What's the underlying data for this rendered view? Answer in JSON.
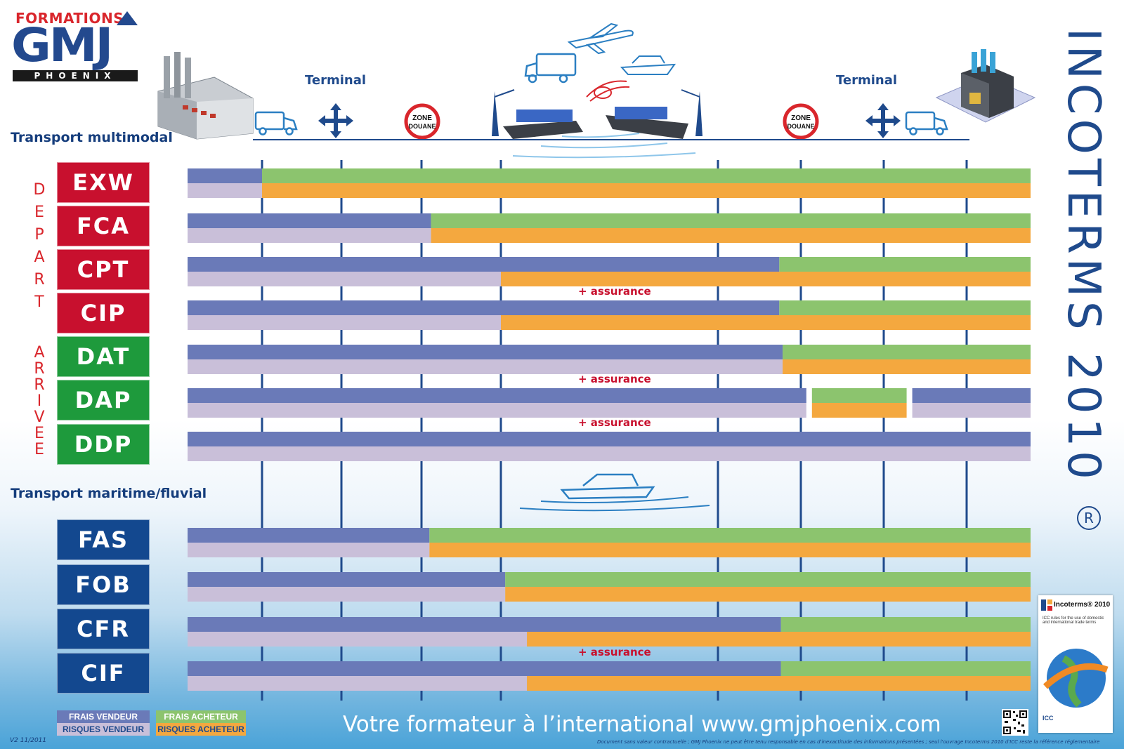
{
  "brand": {
    "formations": "FORMATIONS",
    "gmj": "GMJ",
    "phoenix": "PHOENIX"
  },
  "labels": {
    "multimodal": "Transport multimodal",
    "maritime": "Transport maritime/fluvial",
    "terminal_left": "Terminal",
    "terminal_right": "Terminal",
    "zone": "ZONE",
    "douane": "DOUANE",
    "vertical_title": "INCOTERMS 2010",
    "registered": "®",
    "depart": "DEPART",
    "arrivee": "ARRIVEE"
  },
  "terms": [
    {
      "code": "EXW",
      "group": "depart",
      "seller_cost_end": 1,
      "seller_risk_end": 1
    },
    {
      "code": "FCA",
      "group": "depart",
      "seller_cost_end": 3.12,
      "seller_risk_end": 3.12
    },
    {
      "code": "CPT",
      "group": "depart",
      "seller_cost_end": 5.74,
      "seller_risk_end": 4.0
    },
    {
      "code": "CIP",
      "group": "depart",
      "seller_cost_end": 5.74,
      "seller_risk_end": 4.0,
      "note": "+ assurance"
    },
    {
      "code": "DAT",
      "group": "arrivee",
      "seller_cost_end": 5.78,
      "seller_risk_end": 5.78
    },
    {
      "code": "DAP",
      "group": "arrivee",
      "seller_cost_end": 6.1,
      "seller_risk_end": 6.1,
      "buyer_until": 7.31,
      "note": "+ assurance"
    },
    {
      "code": "DDP",
      "group": "arrivee",
      "seller_cost_end": 9.08,
      "seller_risk_end": 9.08,
      "note": "+ assurance"
    },
    {
      "code": "FAS",
      "group": "maritime",
      "seller_cost_end": 3.1,
      "seller_risk_end": 3.1
    },
    {
      "code": "FOB",
      "group": "maritime",
      "seller_cost_end": 4.02,
      "seller_risk_end": 4.02
    },
    {
      "code": "CFR",
      "group": "maritime",
      "seller_cost_end": 5.76,
      "seller_risk_end": 4.12
    },
    {
      "code": "CIF",
      "group": "maritime",
      "seller_cost_end": 5.76,
      "seller_risk_end": 4.12,
      "note": "+ assurance"
    }
  ],
  "legend": {
    "frais_vendeur": "FRAIS VENDEUR",
    "risques_vendeur": "RISQUES VENDEUR",
    "frais_acheteur": "FRAIS ACHETEUR",
    "risques_acheteur": "RISQUES ACHETEUR"
  },
  "colors": {
    "frais_vendeur": "#6a7ab8",
    "risques_vendeur": "#c9bfd9",
    "frais_acheteur": "#8cc46e",
    "risques_acheteur": "#f4a83f",
    "depart": "#c8102e",
    "arrivee": "#1e9a3c",
    "maritime": "#13488f"
  },
  "footer": {
    "tagline": "Votre formateur à l’international   www.gmjphoenix.com",
    "version": "V2 11/2011",
    "disclaimer": "Document sans valeur contractuelle ; GMJ Phoenix ne peut être tenu responsable en cas d'inexactitude des informations présentées ; seul l'ouvrage Incoterms 2010 d'ICC reste la référence réglementaire"
  },
  "book": {
    "title": "Incoterms® 2010",
    "subtitle": "ICC rules for the use of domestic and international trade terms",
    "publisher": "ICC"
  }
}
